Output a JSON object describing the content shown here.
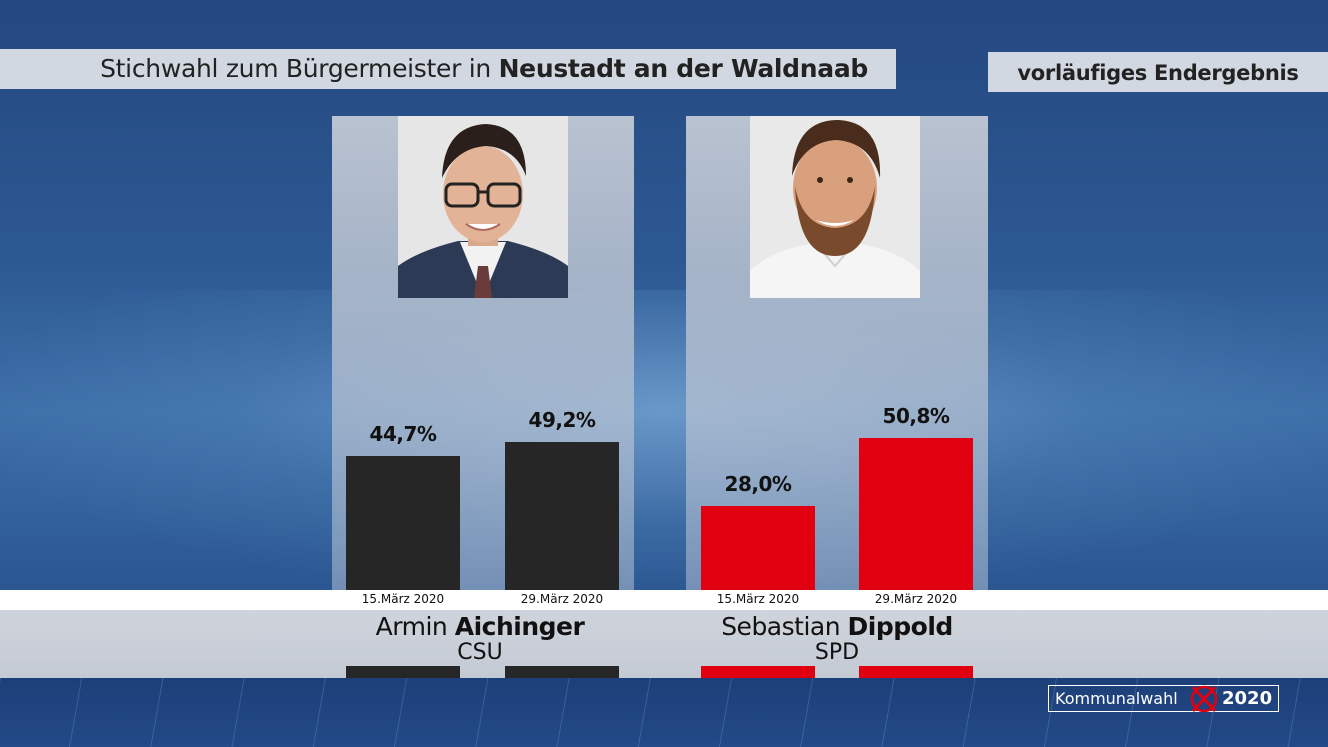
{
  "header": {
    "title_prefix": "Stichwahl zum Bürgermeister in ",
    "title_place": "Neustadt an der Waldnaab",
    "status": "vorläufiges Endergebnis"
  },
  "colors": {
    "csu": "#262626",
    "spd": "#e0000f"
  },
  "chart_data": {
    "type": "bar",
    "title": "Stichwahl zum Bürgermeister in Neustadt an der Waldnaab",
    "categories": [
      "15.März 2020",
      "29.März 2020"
    ],
    "ylim": [
      0,
      100
    ],
    "series": [
      {
        "name": "Armin Aichinger",
        "party": "CSU",
        "color": "#262626",
        "values": [
          44.7,
          49.2
        ],
        "labels": [
          "44,7%",
          "49,2%"
        ]
      },
      {
        "name": "Sebastian Dippold",
        "party": "SPD",
        "color": "#e0000f",
        "values": [
          28.0,
          50.8
        ],
        "labels": [
          "28,0%",
          "50,8%"
        ]
      }
    ]
  },
  "candidates": [
    {
      "first": "Armin",
      "last": "Aichinger",
      "party": "CSU",
      "photo": "portrait-photo"
    },
    {
      "first": "Sebastian",
      "last": "Dippold",
      "party": "SPD",
      "photo": "portrait-photo"
    }
  ],
  "logo": {
    "text": "Kommunalwahl",
    "year": "2020",
    "mark": "ballot-x-icon"
  }
}
